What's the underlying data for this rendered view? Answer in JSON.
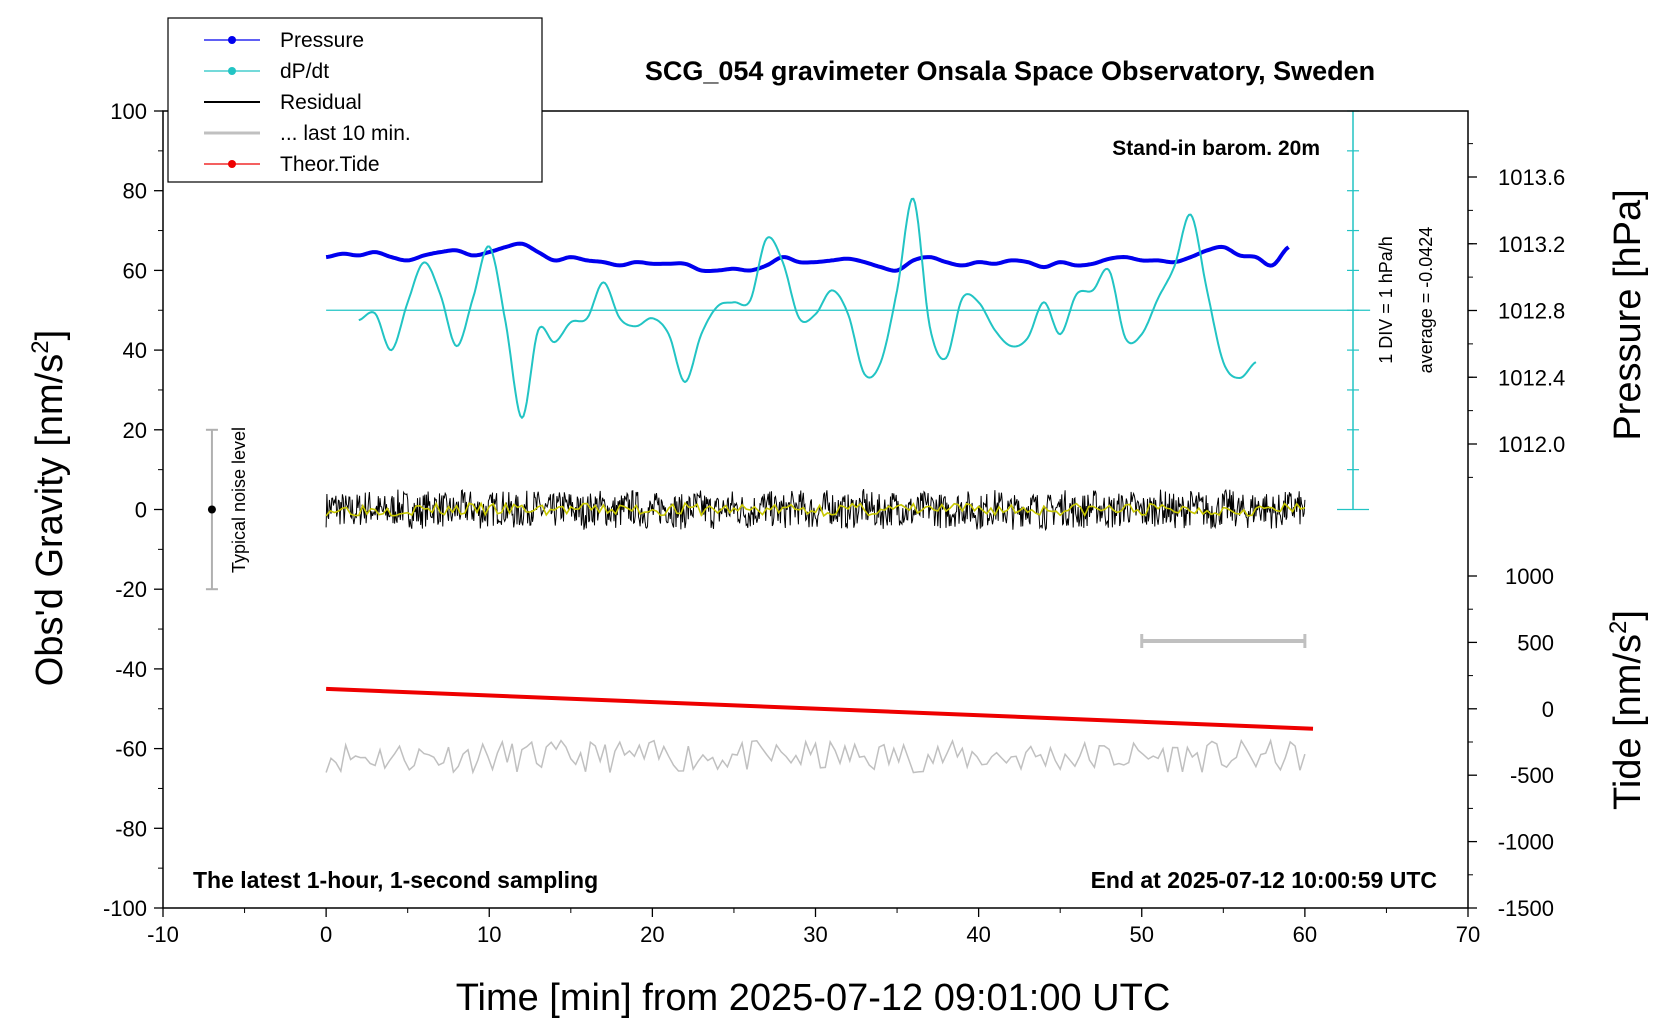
{
  "chart_data": {
    "type": "line",
    "title": "SCG_054 gravimeter Onsala Space Observatory, Sweden",
    "xlabel": "Time [min] from 2025-07-12 09:01:00 UTC",
    "ylabel_left": "Obs'd Gravity [nm/s",
    "ylabel_left_sup": "2",
    "ylabel_left_end": "]",
    "ylabel_right_pressure": "Pressure [hPa]",
    "ylabel_right_tide": "Tide [nm/s",
    "ylabel_right_tide_sup": "2",
    "ylabel_right_tide_end": "]",
    "xlim": [
      -10,
      70
    ],
    "ylim": [
      -100,
      100
    ],
    "x_ticks": [
      "-10",
      "0",
      "10",
      "20",
      "30",
      "40",
      "50",
      "60",
      "70"
    ],
    "y_ticks": [
      "-100",
      "-80",
      "-60",
      "-40",
      "-20",
      "0",
      "20",
      "40",
      "60",
      "80",
      "100"
    ],
    "pressure_ylim": [
      1011.6,
      1013.8
    ],
    "pressure_ticks": [
      "1012.0",
      "1012.4",
      "1012.8",
      "1013.2",
      "1013.6"
    ],
    "tide_ylim": [
      -1500,
      1000
    ],
    "tide_ticks": [
      "-1500",
      "-1000",
      "-500",
      "0",
      "500",
      "1000"
    ],
    "legend_position": "top-left",
    "series": [
      {
        "name": "Pressure",
        "color": "#0000ee",
        "axis": "pressure",
        "x": [
          0,
          1,
          2,
          3,
          4,
          5,
          6,
          7,
          8,
          9,
          10,
          11,
          12,
          13,
          14,
          15,
          16,
          17,
          18,
          19,
          20,
          21,
          22,
          23,
          24,
          25,
          26,
          27,
          28,
          29,
          30,
          31,
          32,
          33,
          34,
          35,
          36,
          37,
          38,
          39,
          40,
          41,
          42,
          43,
          44,
          45,
          46,
          47,
          48,
          49,
          50,
          51,
          52,
          53,
          54,
          55,
          56,
          57,
          58,
          59
        ],
        "values": [
          1013.12,
          1013.14,
          1013.13,
          1013.15,
          1013.12,
          1013.1,
          1013.13,
          1013.15,
          1013.16,
          1013.13,
          1013.15,
          1013.18,
          1013.2,
          1013.15,
          1013.1,
          1013.12,
          1013.1,
          1013.09,
          1013.07,
          1013.09,
          1013.08,
          1013.08,
          1013.08,
          1013.04,
          1013.04,
          1013.05,
          1013.04,
          1013.07,
          1013.12,
          1013.09,
          1013.09,
          1013.1,
          1013.11,
          1013.09,
          1013.06,
          1013.04,
          1013.1,
          1013.12,
          1013.09,
          1013.07,
          1013.09,
          1013.08,
          1013.1,
          1013.09,
          1013.06,
          1013.09,
          1013.07,
          1013.08,
          1013.11,
          1013.12,
          1013.1,
          1013.1,
          1013.09,
          1013.12,
          1013.16,
          1013.18,
          1013.13,
          1013.12,
          1013.07,
          1013.18
        ]
      },
      {
        "name": "dP/dt",
        "color": "#22c4c4",
        "axis": "dpdt",
        "x": [
          2,
          3,
          4,
          5,
          6,
          7,
          8,
          9,
          10,
          11,
          12,
          13,
          14,
          15,
          16,
          17,
          18,
          19,
          20,
          21,
          22,
          23,
          24,
          25,
          26,
          27,
          28,
          29,
          30,
          31,
          32,
          33,
          34,
          35,
          36,
          37,
          38,
          39,
          40,
          41,
          42,
          43,
          44,
          45,
          46,
          47,
          48,
          49,
          50,
          51,
          52,
          53,
          54,
          55,
          56,
          57
        ],
        "values": [
          -0.25,
          -0.08,
          -1,
          0.2,
          1.2,
          0.4,
          -0.9,
          0.3,
          1.6,
          -0.3,
          -2.7,
          -0.5,
          -0.8,
          -0.3,
          -0.2,
          0.7,
          -0.2,
          -0.4,
          -0.2,
          -0.6,
          -1.8,
          -0.6,
          0.1,
          0.2,
          0.25,
          1.8,
          1.2,
          -0.2,
          -0.1,
          0.5,
          -0.1,
          -1.6,
          -1.3,
          0.5,
          2.8,
          -0.4,
          -1.2,
          0.3,
          0.2,
          -0.5,
          -0.9,
          -0.7,
          0.2,
          -0.6,
          0.4,
          0.5,
          1.0,
          -0.7,
          -0.6,
          0.3,
          1.1,
          2.4,
          0.5,
          -1.3,
          -1.7,
          -1.3
        ]
      },
      {
        "name": "Residual",
        "color": "#000000",
        "axis": "gravity",
        "x": [
          0,
          60
        ],
        "values": [
          0,
          0
        ]
      },
      {
        "name": "... last 10 min.",
        "color": "#c0c0c0",
        "axis": "gravity",
        "x": [
          0,
          60
        ],
        "values": [
          -62,
          -62
        ]
      },
      {
        "name": "Theor.Tide",
        "color": "#ee0000",
        "axis": "tide",
        "x": [
          0,
          60.5
        ],
        "values": [
          150,
          -150
        ]
      }
    ],
    "legend": [
      "Pressure",
      "dP/dt",
      "Residual",
      "... last 10 min.",
      "Theor.Tide"
    ],
    "annotations": {
      "barometer_note": "Stand-in barom. 20m",
      "div_note": "1 DIV = 1 hPa/h",
      "average_note": "average = -0.0424",
      "noise_note": "Typical noise level",
      "bottom_left_note": "The latest 1-hour, 1-second sampling",
      "bottom_right_note": "End at 2025-07-12 10:00:59 UTC"
    },
    "noise_bar": {
      "x": -7,
      "y_low": -20,
      "y_high": 20
    },
    "ten_minute_bar": {
      "x_start": 50,
      "x_end": 60,
      "y": -33
    },
    "dpdt_baseline_y": 50,
    "grid": false
  }
}
